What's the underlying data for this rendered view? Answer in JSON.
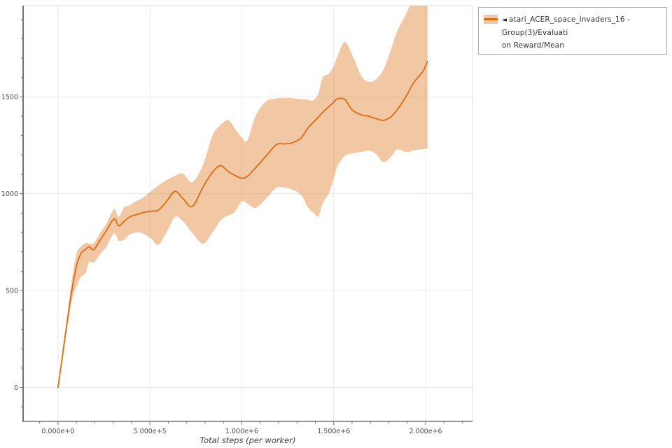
{
  "page": {
    "background": "#ffffff"
  },
  "legend": {
    "marker_icon": "◄",
    "label_line1": "atari_ACER_space_invaders_16 - Group(3)/Evaluati",
    "label_line2": "on Reward/Mean",
    "swatch_band_color": "#f2c7a4",
    "swatch_line_color": "#dd6b10",
    "border_color": "#a8a8a8"
  },
  "chart_data": {
    "type": "line",
    "title": "",
    "xlabel": "Total steps (per worker)",
    "ylabel": "",
    "legend_position": "top-right-outside",
    "grid": true,
    "x_domain": [
      -190000,
      2255000
    ],
    "y_domain": [
      -175,
      1971
    ],
    "x_ticks": [
      {
        "value": 0,
        "label": "0.000e+0"
      },
      {
        "value": 500000,
        "label": "5.000e+5"
      },
      {
        "value": 1000000,
        "label": "1.000e+6"
      },
      {
        "value": 1500000,
        "label": "1.500e+6"
      },
      {
        "value": 2000000,
        "label": "2.000e+6"
      }
    ],
    "y_ticks": [
      {
        "value": 0,
        "label": "0"
      },
      {
        "value": 500,
        "label": "500"
      },
      {
        "value": 1000,
        "label": "1000"
      },
      {
        "value": 1500,
        "label": "1500"
      }
    ],
    "x_minor_step": 100000,
    "y_minor_step": 100,
    "colors": {
      "line": "#dd6b10",
      "band_fill": "rgba(221,107,16,0.38)",
      "grid": "#e9e9e9",
      "spine_dark": "#737373",
      "spine_light": "#dcdcdc",
      "tick": "#737373",
      "tick_label": "#4d4d4d"
    },
    "series": [
      {
        "name": "atari_ACER_space_invaders_16 - Group(3)/Evaluation Reward/Mean",
        "x": [
          0,
          25000,
          50000,
          75000,
          100000,
          125000,
          150000,
          170000,
          195000,
          230000,
          260000,
          305000,
          330000,
          360000,
          390000,
          425000,
          455000,
          505000,
          545000,
          590000,
          636000,
          680000,
          731000,
          789000,
          840000,
          884000,
          925000,
          960000,
          1000000,
          1030000,
          1074000,
          1131000,
          1188000,
          1230000,
          1272000,
          1322000,
          1360000,
          1390000,
          1417000,
          1440000,
          1474000,
          1500000,
          1520000,
          1560000,
          1600000,
          1650000,
          1690000,
          1730000,
          1770000,
          1810000,
          1845000,
          1895000,
          1930000,
          1960000,
          1985000,
          2010000
        ],
        "mean": [
          0,
          170,
          340,
          500,
          625,
          692,
          713,
          726,
          712,
          762,
          805,
          870,
          835,
          858,
          880,
          892,
          901,
          910,
          915,
          960,
          1013,
          975,
          934,
          1035,
          1110,
          1145,
          1115,
          1096,
          1080,
          1090,
          1133,
          1194,
          1253,
          1257,
          1262,
          1288,
          1340,
          1370,
          1397,
          1420,
          1450,
          1472,
          1490,
          1487,
          1433,
          1407,
          1400,
          1388,
          1379,
          1396,
          1433,
          1505,
          1566,
          1602,
          1631,
          1682
        ],
        "lo": [
          0,
          155,
          310,
          450,
          520,
          570,
          592,
          648,
          645,
          690,
          722,
          795,
          758,
          763,
          790,
          800,
          797,
          770,
          737,
          800,
          880,
          858,
          797,
          742,
          800,
          862,
          888,
          905,
          960,
          950,
          927,
          975,
          1031,
          1033,
          1022,
          995,
          930,
          900,
          885,
          950,
          1005,
          1080,
          1140,
          1195,
          1208,
          1216,
          1222,
          1205,
          1163,
          1190,
          1228,
          1215,
          1222,
          1228,
          1230,
          1235
        ],
        "hi": [
          0,
          190,
          370,
          555,
          690,
          728,
          745,
          743,
          745,
          800,
          840,
          920,
          882,
          930,
          940,
          962,
          975,
          1013,
          1042,
          1070,
          1092,
          1104,
          1060,
          1150,
          1300,
          1355,
          1380,
          1340,
          1290,
          1275,
          1400,
          1476,
          1492,
          1495,
          1494,
          1488,
          1485,
          1483,
          1520,
          1600,
          1620,
          1660,
          1710,
          1783,
          1718,
          1608,
          1578,
          1590,
          1640,
          1740,
          1838,
          1930,
          2010,
          2060,
          2090,
          2120
        ]
      }
    ]
  }
}
